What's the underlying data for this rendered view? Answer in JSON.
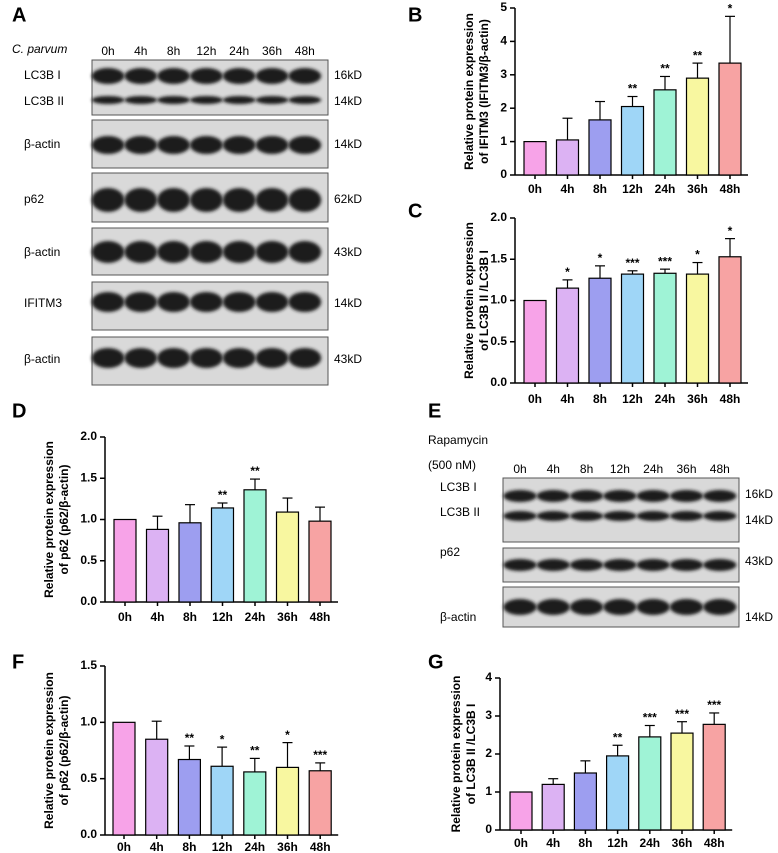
{
  "panel_labels": [
    "A",
    "B",
    "C",
    "D",
    "E",
    "F",
    "G"
  ],
  "blot_a": {
    "treatment": "C. parvum",
    "lanes": [
      "0h",
      "4h",
      "8h",
      "12h",
      "24h",
      "36h",
      "48h"
    ],
    "rows": [
      {
        "label": "LC3B I",
        "size": "16kD"
      },
      {
        "label": "LC3B II",
        "size": "14kD"
      },
      {
        "label": "β-actin",
        "size": "14kD"
      },
      {
        "label": "p62",
        "size": "62kD"
      },
      {
        "label": "β-actin",
        "size": "43kD"
      },
      {
        "label": "IFITM3",
        "size": "14kD"
      },
      {
        "label": "β-actin",
        "size": "43kD"
      }
    ]
  },
  "blot_e": {
    "treatment": "Rapamycin",
    "dose": "(500 nM)",
    "lanes": [
      "0h",
      "4h",
      "8h",
      "12h",
      "24h",
      "36h",
      "48h"
    ],
    "rows": [
      {
        "label": "LC3B I",
        "size": "16kD"
      },
      {
        "label": "LC3B II",
        "size": "14kD"
      },
      {
        "label": "p62",
        "size": "43kD"
      },
      {
        "label": "β-actin",
        "size": "14kD"
      }
    ]
  },
  "chart_data": [
    {
      "type": "bar",
      "ylabel": [
        "Relative protein expression",
        "of IFITM3 (IFITM3/β-actin)"
      ],
      "categories": [
        "0h",
        "4h",
        "8h",
        "12h",
        "24h",
        "36h",
        "48h"
      ],
      "values": [
        1.0,
        1.05,
        1.65,
        2.05,
        2.55,
        2.9,
        3.35
      ],
      "errors": [
        null,
        0.65,
        0.55,
        0.3,
        0.4,
        0.45,
        1.4
      ],
      "significance": [
        null,
        null,
        null,
        "**",
        "**",
        "**",
        "*"
      ],
      "colors": [
        "#f7a3e8",
        "#dcb2f3",
        "#9d9ef0",
        "#9fd6f7",
        "#9ff3d6",
        "#f8f7a0",
        "#f7a3a3"
      ],
      "ylim": [
        0,
        5
      ],
      "yticks": [
        0,
        1,
        2,
        3,
        4,
        5
      ]
    },
    {
      "type": "bar",
      "ylabel": [
        "Relative protein expression",
        "of  LC3B II /LC3B I"
      ],
      "categories": [
        "0h",
        "4h",
        "8h",
        "12h",
        "24h",
        "36h",
        "48h"
      ],
      "values": [
        1.0,
        1.15,
        1.27,
        1.32,
        1.33,
        1.32,
        1.53
      ],
      "errors": [
        null,
        0.1,
        0.15,
        0.04,
        0.05,
        0.14,
        0.22
      ],
      "significance": [
        null,
        "*",
        "*",
        "***",
        "***",
        "*",
        "*"
      ],
      "colors": [
        "#f7a3e8",
        "#dcb2f3",
        "#9d9ef0",
        "#9fd6f7",
        "#9ff3d6",
        "#f8f7a0",
        "#f7a3a3"
      ],
      "ylim": [
        0,
        2
      ],
      "yticks": [
        {
          "value": 0,
          "label": "0.0"
        },
        0.5,
        {
          "value": 1,
          "label": "1.0"
        },
        1.5,
        {
          "value": 2,
          "label": "2.0"
        }
      ]
    },
    {
      "type": "bar",
      "ylabel": [
        "Relative protein expression",
        "of  p62 (p62/β-actin)"
      ],
      "categories": [
        "0h",
        "4h",
        "8h",
        "12h",
        "24h",
        "36h",
        "48h"
      ],
      "values": [
        1.0,
        0.88,
        0.96,
        1.14,
        1.36,
        1.09,
        0.98
      ],
      "errors": [
        null,
        0.16,
        0.22,
        0.06,
        0.13,
        0.17,
        0.17
      ],
      "significance": [
        null,
        null,
        null,
        "**",
        "**",
        null,
        null
      ],
      "colors": [
        "#f7a3e8",
        "#dcb2f3",
        "#9d9ef0",
        "#9fd6f7",
        "#9ff3d6",
        "#f8f7a0",
        "#f7a3a3"
      ],
      "ylim": [
        0,
        2
      ],
      "yticks": [
        {
          "value": 0,
          "label": "0.0"
        },
        0.5,
        {
          "value": 1,
          "label": "1.0"
        },
        1.5,
        {
          "value": 2,
          "label": "2.0"
        }
      ]
    },
    {
      "type": "bar",
      "ylabel": [
        "Relative protein expression",
        "of  p62 (p62/β-actin)"
      ],
      "categories": [
        "0h",
        "4h",
        "8h",
        "12h",
        "24h",
        "36h",
        "48h"
      ],
      "values": [
        1.0,
        0.85,
        0.67,
        0.61,
        0.56,
        0.6,
        0.57
      ],
      "errors": [
        null,
        0.16,
        0.12,
        0.17,
        0.12,
        0.22,
        0.07
      ],
      "significance": [
        null,
        null,
        "**",
        "*",
        "**",
        "*",
        "***"
      ],
      "colors": [
        "#f7a3e8",
        "#dcb2f3",
        "#9d9ef0",
        "#9fd6f7",
        "#9ff3d6",
        "#f8f7a0",
        "#f7a3a3"
      ],
      "ylim": [
        0,
        1.5
      ],
      "yticks": [
        {
          "value": 0,
          "label": "0.0"
        },
        0.5,
        {
          "value": 1,
          "label": "1.0"
        },
        1.5
      ]
    },
    {
      "type": "bar",
      "ylabel": [
        "Relative protein expression",
        "of  LC3B II /LC3B I"
      ],
      "categories": [
        "0h",
        "4h",
        "8h",
        "12h",
        "24h",
        "36h",
        "48h"
      ],
      "values": [
        1.0,
        1.2,
        1.5,
        1.95,
        2.45,
        2.55,
        2.78
      ],
      "errors": [
        null,
        0.15,
        0.32,
        0.28,
        0.3,
        0.3,
        0.3
      ],
      "significance": [
        null,
        null,
        null,
        "**",
        "***",
        "***",
        "***"
      ],
      "colors": [
        "#f7a3e8",
        "#dcb2f3",
        "#9d9ef0",
        "#9fd6f7",
        "#9ff3d6",
        "#f8f7a0",
        "#f7a3a3"
      ],
      "ylim": [
        0,
        4
      ],
      "yticks": [
        0,
        1,
        2,
        3,
        4
      ]
    }
  ]
}
